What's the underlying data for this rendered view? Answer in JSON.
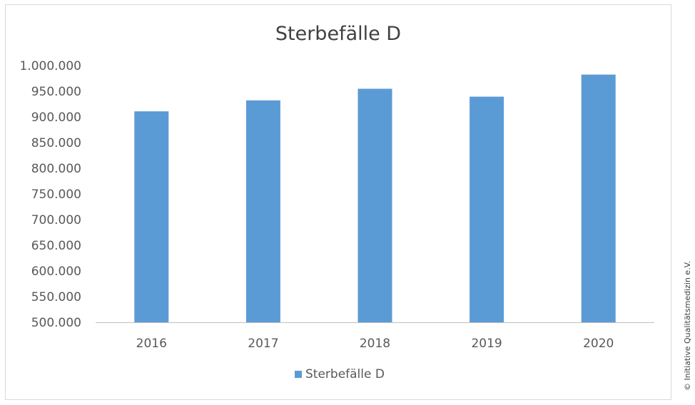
{
  "chart_data": {
    "type": "bar",
    "title": "Sterbefälle D",
    "categories": [
      "2016",
      "2017",
      "2018",
      "2019",
      "2020"
    ],
    "series": [
      {
        "name": "Sterbefälle D",
        "values": [
          910900,
          932300,
          954900,
          939500,
          982500
        ]
      }
    ],
    "ylim": [
      500000,
      1000000
    ],
    "ytick_labels": [
      "500.000",
      "550.000",
      "600.000",
      "650.000",
      "700.000",
      "750.000",
      "800.000",
      "850.000",
      "900.000",
      "950.000",
      "1.000.000"
    ],
    "grid": false,
    "legend": "bottom-center",
    "colors": {
      "bar": "#5b9bd5",
      "axis": "#bfbfbf",
      "text": "#595959",
      "title": "#404040"
    }
  },
  "copyright": "© Initiative Qualitätsmedizin e.V."
}
